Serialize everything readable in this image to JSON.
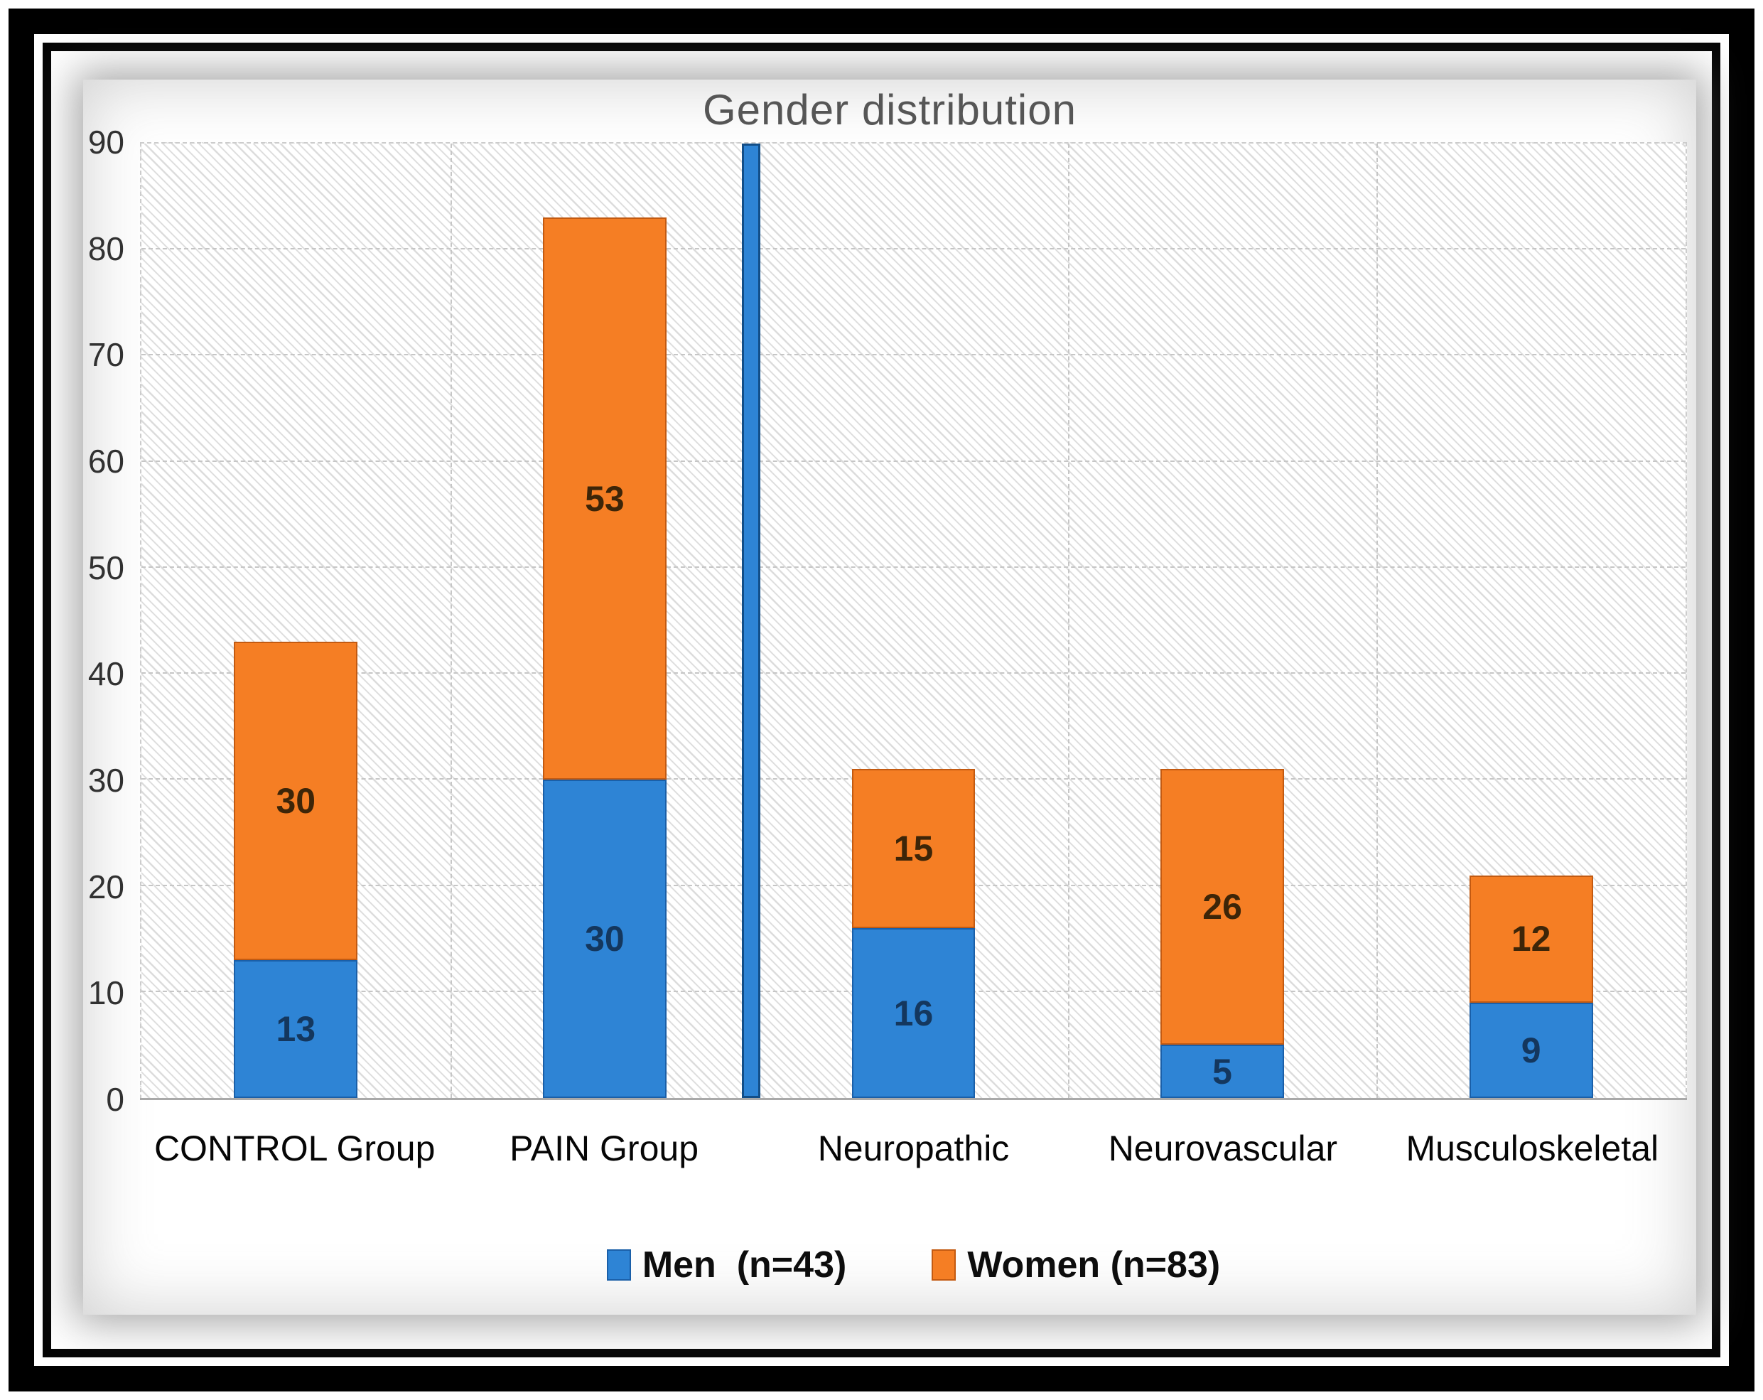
{
  "chart_data": {
    "type": "bar",
    "stacked": true,
    "title": "Gender distribution",
    "categories": [
      "CONTROL Group",
      "PAIN Group",
      "Neuropathic",
      "Neurovascular",
      "Musculoskeletal"
    ],
    "series": [
      {
        "name": "Men  (n=43)",
        "color": "#2e84d5",
        "border_color": "#1a5fa8",
        "label_color": "#14375e",
        "values": [
          13,
          30,
          16,
          5,
          9
        ]
      },
      {
        "name": "Women (n=83)",
        "color": "#f57e24",
        "border_color": "#c35a11",
        "label_color": "#3d2508",
        "values": [
          30,
          53,
          15,
          26,
          12
        ]
      }
    ],
    "ylim": [
      0,
      90
    ],
    "yticks": [
      0,
      10,
      20,
      30,
      40,
      50,
      60,
      70,
      80,
      90
    ],
    "grid": "dashed horizontal every 10 units, dashed vertical between categories",
    "legend_position": "bottom",
    "divider": {
      "between": [
        "PAIN Group",
        "Neuropathic"
      ],
      "color": "#2e84d5",
      "border_color": "#124e88",
      "position_pct": 39.5
    }
  }
}
